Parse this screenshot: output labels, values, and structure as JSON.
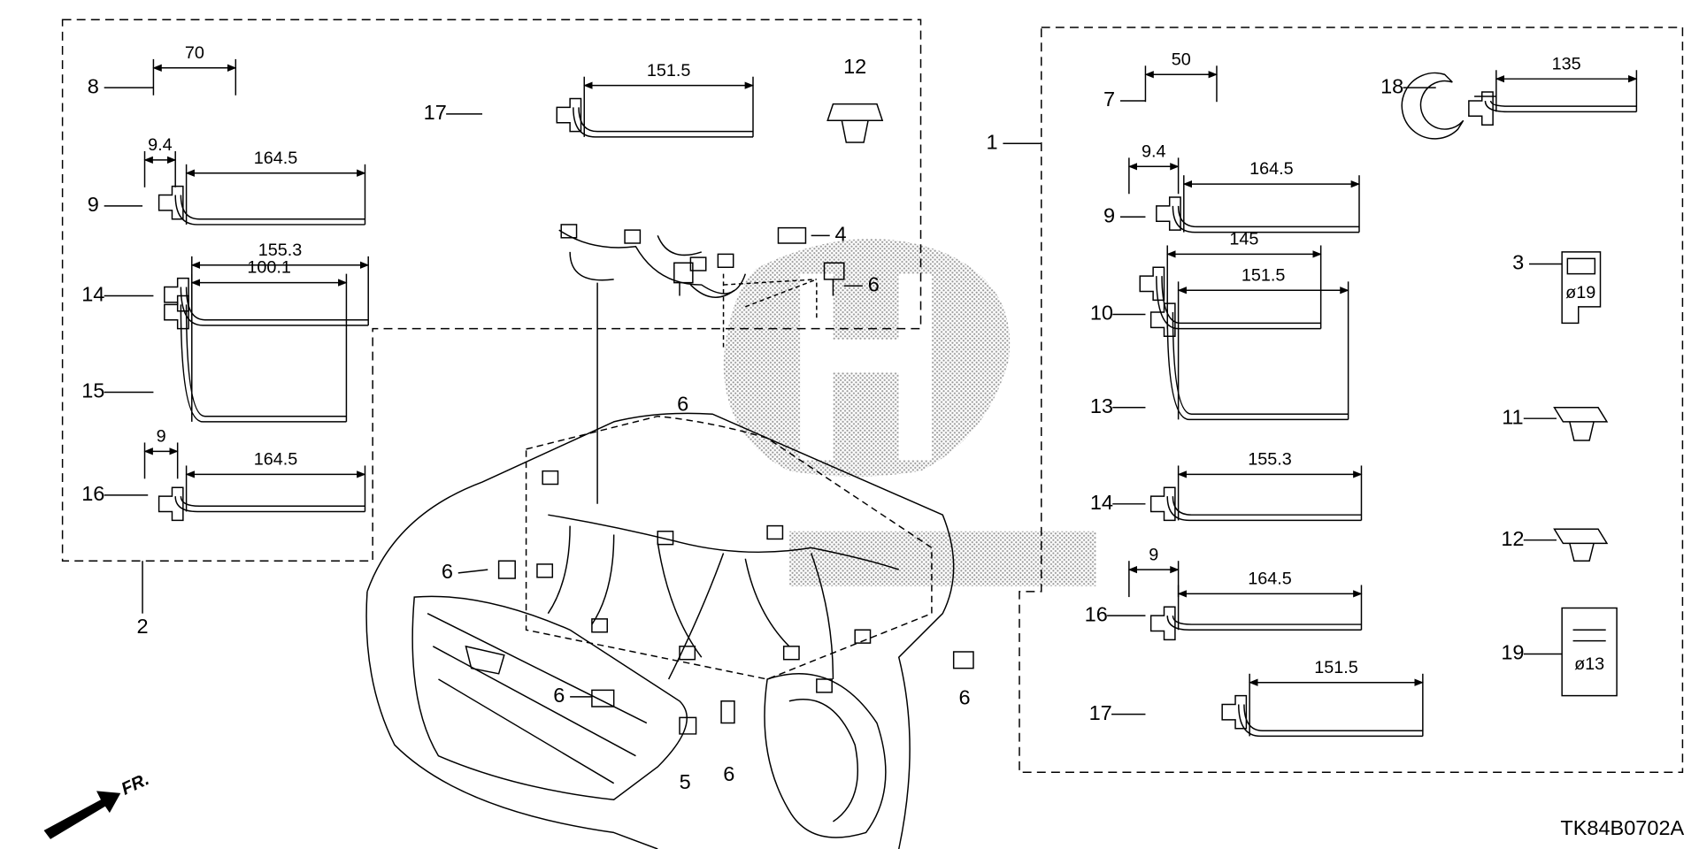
{
  "callouts": [
    "8",
    "9",
    "14",
    "15",
    "16",
    "2",
    "17",
    "12",
    "4",
    "6",
    "6",
    "6",
    "6",
    "5",
    "6",
    "6",
    "1",
    "7",
    "18",
    "9",
    "3",
    "10",
    "13",
    "11",
    "14",
    "12",
    "16",
    "19",
    "17"
  ],
  "dimensions": [
    "70",
    "9.4",
    "164.5",
    "155.3",
    "100.1",
    "9",
    "164.5",
    "151.5",
    "50",
    "135",
    "9.4",
    "164.5",
    "145",
    "151.5",
    "155.3",
    "9",
    "164.5",
    "151.5"
  ],
  "part_labels": [
    "ø19",
    "ø13"
  ],
  "direction": "FR.",
  "code": "TK84B0702A"
}
